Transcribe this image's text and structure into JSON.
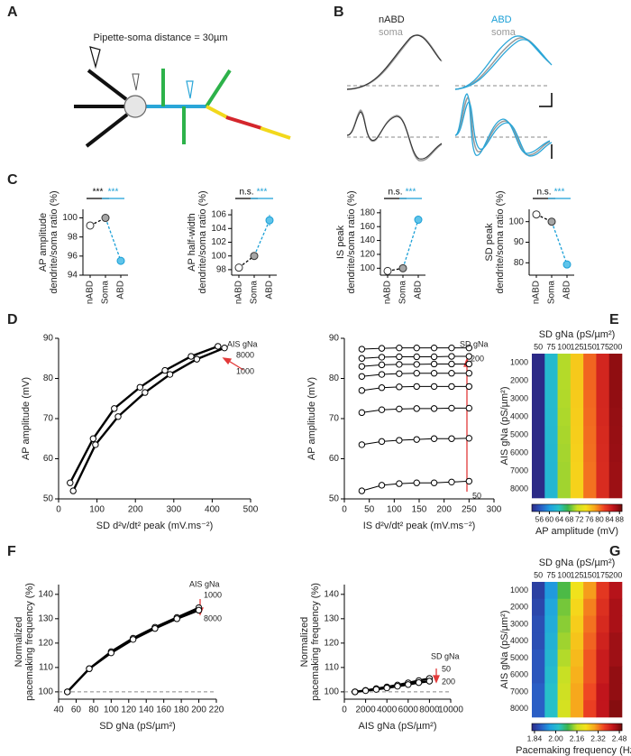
{
  "panel_labels": [
    "A",
    "B",
    "C",
    "D",
    "E",
    "F",
    "G"
  ],
  "diagram": {
    "caption": "Pipette-soma distance = 30µm"
  },
  "traces": {
    "labels": [
      "nABD",
      "soma",
      "ABD",
      "soma"
    ]
  },
  "chart_data": [
    {
      "type": "dot-line",
      "ylabel": [
        "AP amplitude",
        "dendrite/soma ratio (%)"
      ],
      "categories": [
        "nABD",
        "Soma",
        "ABD"
      ],
      "values": [
        99.2,
        100,
        95.5
      ],
      "errors": [
        0.1,
        0.1,
        0.15
      ],
      "point_colors": [
        "#ffffff",
        "#a6a6a6",
        "#5fc4ea"
      ],
      "segment_colors": [
        "#000000",
        "#1a9fd6"
      ],
      "significance": [
        {
          "label": "***",
          "color": "#000000"
        },
        {
          "label": "***",
          "color": "#1a9fd6"
        }
      ],
      "ylim": [
        94,
        100.9
      ],
      "yticks": [
        94,
        96,
        98,
        100
      ]
    },
    {
      "type": "dot-line",
      "ylabel": [
        "AP half-width",
        "dendrite/soma ratio (%)"
      ],
      "categories": [
        "nABD",
        "Soma",
        "ABD"
      ],
      "values": [
        98.3,
        100,
        105.2
      ],
      "errors": [
        0.3,
        0.1,
        0.8
      ],
      "point_colors": [
        "#ffffff",
        "#a6a6a6",
        "#5fc4ea"
      ],
      "segment_colors": [
        "#000000",
        "#1a9fd6"
      ],
      "significance": [
        {
          "label": "n.s.",
          "color": "#000000"
        },
        {
          "label": "***",
          "color": "#1a9fd6"
        }
      ],
      "ylim": [
        97.2,
        106.8
      ],
      "yticks": [
        98,
        100,
        102,
        104,
        106
      ]
    },
    {
      "type": "dot-line",
      "ylabel": [
        "IS peak",
        "dendrite/soma ratio (%)"
      ],
      "categories": [
        "nABD",
        "Soma",
        "ABD"
      ],
      "values": [
        96,
        100,
        170
      ],
      "errors": [
        1,
        1,
        2
      ],
      "point_colors": [
        "#ffffff",
        "#a6a6a6",
        "#5fc4ea"
      ],
      "segment_colors": [
        "#000000",
        "#1a9fd6"
      ],
      "significance": [
        {
          "label": "n.s.",
          "color": "#000000"
        },
        {
          "label": "***",
          "color": "#1a9fd6"
        }
      ],
      "ylim": [
        90,
        185
      ],
      "yticks": [
        100,
        120,
        140,
        160,
        180
      ]
    },
    {
      "type": "dot-line",
      "ylabel": [
        "SD peak",
        "dendrite/soma ratio (%)"
      ],
      "categories": [
        "nABD",
        "Soma",
        "ABD"
      ],
      "values": [
        103.5,
        100,
        79.2
      ],
      "errors": [
        0.5,
        0.3,
        1.8
      ],
      "point_colors": [
        "#ffffff",
        "#a6a6a6",
        "#5fc4ea"
      ],
      "segment_colors": [
        "#000000",
        "#1a9fd6"
      ],
      "significance": [
        {
          "label": "n.s.",
          "color": "#000000"
        },
        {
          "label": "***",
          "color": "#1a9fd6"
        }
      ],
      "ylim": [
        74,
        106
      ],
      "yticks": [
        80,
        90,
        100
      ]
    },
    {
      "type": "line",
      "xlabel": "SD d²v/dt² peak (mV.ms⁻²)",
      "ylabel": "AP amplitude (mV)",
      "annotations": [
        "AIS gNa",
        "8000",
        "1000"
      ],
      "series": [
        {
          "color": "#000000",
          "x": [
            30,
            90,
            145,
            212,
            277,
            345,
            415
          ],
          "values": [
            54,
            65,
            72.5,
            77.8,
            82,
            85.5,
            88
          ]
        },
        {
          "color": "#000000",
          "x": [
            38,
            96,
            155,
            225,
            290,
            360,
            432
          ],
          "values": [
            52,
            63.5,
            70.5,
            76.5,
            81,
            84.8,
            87.6
          ]
        }
      ],
      "xlim": [
        0,
        500
      ],
      "xticks": [
        0,
        100,
        200,
        300,
        400,
        500
      ],
      "ylim": [
        50,
        90
      ],
      "yticks": [
        50,
        60,
        70,
        80,
        90
      ]
    },
    {
      "type": "line",
      "xlabel": "IS d²v/dt² peak (mV.ms⁻²)",
      "ylabel": "AP amplitude (mV)",
      "annotations": [
        "SD gNa",
        "200",
        "50"
      ],
      "x": [
        35,
        75,
        110,
        145,
        180,
        215,
        250
      ],
      "series": [
        {
          "color": "#000000",
          "values": [
            52,
            53.4,
            53.8,
            54,
            54,
            54.2,
            54.4
          ]
        },
        {
          "color": "#000000",
          "values": [
            63.5,
            64.3,
            64.6,
            64.8,
            65,
            65,
            65.1
          ]
        },
        {
          "color": "#000000",
          "values": [
            71.5,
            72.2,
            72.4,
            72.5,
            72.5,
            72.6,
            72.6
          ]
        },
        {
          "color": "#000000",
          "values": [
            77,
            77.7,
            77.9,
            78,
            78,
            78,
            78
          ]
        },
        {
          "color": "#000000",
          "values": [
            80.5,
            81,
            81.2,
            81.3,
            81.3,
            81.3,
            81.3
          ]
        },
        {
          "color": "#000000",
          "values": [
            83,
            83.4,
            83.5,
            83.5,
            83.6,
            83.6,
            83.6
          ]
        },
        {
          "color": "#000000",
          "values": [
            85,
            85.3,
            85.4,
            85.4,
            85.4,
            85.5,
            85.5
          ]
        },
        {
          "color": "#000000",
          "values": [
            87.3,
            87.5,
            87.6,
            87.6,
            87.6,
            87.6,
            87.6
          ]
        }
      ],
      "xlim": [
        0,
        300
      ],
      "xticks": [
        0,
        50,
        100,
        150,
        200,
        250,
        300
      ],
      "ylim": [
        50,
        90
      ],
      "yticks": [
        50,
        60,
        70,
        80,
        90
      ]
    },
    {
      "type": "heatmap",
      "xlabel": "SD gNa (pS/µm²)",
      "ylabel": "AIS gNa (pS/µm²)",
      "colorbar_label": "AP amplitude (mV)",
      "x_categories": [
        50,
        75,
        100,
        125,
        150,
        175,
        200
      ],
      "y_categories": [
        1000,
        2000,
        3000,
        4000,
        5000,
        6000,
        7000,
        8000
      ],
      "values": [
        [
          53,
          63,
          70.5,
          76,
          80.5,
          84,
          87.5
        ],
        [
          53,
          63,
          70.5,
          76,
          80.5,
          84,
          87.5
        ],
        [
          52.9,
          62.9,
          70.4,
          75.9,
          80.4,
          83.9,
          87.4
        ],
        [
          52.8,
          62.8,
          70.3,
          75.8,
          80.3,
          83.8,
          87.3
        ],
        [
          52.7,
          62.7,
          70.2,
          75.7,
          80.2,
          83.7,
          87.2
        ],
        [
          52.7,
          62.6,
          70.1,
          75.6,
          80.1,
          83.6,
          87.1
        ],
        [
          52.6,
          62.5,
          70,
          75.5,
          80,
          83.5,
          87
        ],
        [
          52.5,
          62.5,
          70,
          75.5,
          80,
          83.5,
          87
        ]
      ],
      "zlim": [
        53,
        89
      ],
      "zticks": [
        56,
        60,
        64,
        68,
        72,
        76,
        80,
        84,
        88
      ],
      "colormap": [
        "#2c2a87",
        "#2a5cc4",
        "#1fa0e0",
        "#27c2c8",
        "#3bb54a",
        "#c8e024",
        "#f5e21b",
        "#f7a21c",
        "#ee4223",
        "#c0141c",
        "#6e0a0a"
      ]
    },
    {
      "type": "line",
      "xlabel": "SD gNa (pS/µm²)",
      "ylabel": [
        "Normalized",
        "pacemaking frequency (%)"
      ],
      "annotations": [
        "AIS gNa",
        "1000",
        "8000"
      ],
      "reference_line": 100,
      "x": [
        50,
        75,
        100,
        125,
        150,
        175,
        200
      ],
      "series": [
        {
          "color": "#000000",
          "values": [
            100,
            109.5,
            116.5,
            122,
            126.5,
            130.5,
            134.5
          ]
        },
        {
          "color": "#000000",
          "values": [
            100,
            109.5,
            116,
            121.5,
            126,
            130,
            133.5
          ]
        }
      ],
      "xlim": [
        40,
        220
      ],
      "xticks": [
        40,
        60,
        80,
        100,
        120,
        140,
        160,
        180,
        200,
        220
      ],
      "ylim": [
        97,
        144
      ],
      "yticks": [
        100,
        110,
        120,
        130,
        140
      ]
    },
    {
      "type": "line",
      "xlabel": "AIS gNa (pS/µm²)",
      "ylabel": [
        "Normalized",
        "pacemaking frequency (%)"
      ],
      "annotations": [
        "SD gNa",
        "50",
        "200"
      ],
      "reference_line": 100,
      "x": [
        1000,
        2000,
        3000,
        4000,
        5000,
        6000,
        7000,
        8000
      ],
      "series": [
        {
          "color": "#000000",
          "values": [
            100,
            100.6,
            101.3,
            102,
            102.8,
            103.7,
            104.6,
            105.5
          ]
        },
        {
          "color": "#000000",
          "values": [
            100,
            100.5,
            101,
            101.6,
            102.3,
            103,
            103.8,
            104.4
          ]
        }
      ],
      "xlim": [
        0,
        10000
      ],
      "xticks": [
        0,
        2000,
        4000,
        6000,
        8000,
        10000
      ],
      "ylim": [
        97,
        144
      ],
      "yticks": [
        100,
        110,
        120,
        130,
        140
      ]
    },
    {
      "type": "heatmap",
      "xlabel": "SD gNa (pS/µm²)",
      "ylabel": "AIS gNa (pS/µm²)",
      "colorbar_label": "Pacemaking frequency (Hz)",
      "x_categories": [
        50,
        75,
        100,
        125,
        150,
        175,
        200
      ],
      "y_categories": [
        1000,
        2000,
        3000,
        4000,
        5000,
        6000,
        7000,
        8000
      ],
      "values": [
        [
          1.85,
          1.95,
          2.1,
          2.22,
          2.3,
          2.38,
          2.44
        ],
        [
          1.86,
          1.97,
          2.12,
          2.24,
          2.32,
          2.39,
          2.45
        ],
        [
          1.87,
          1.98,
          2.13,
          2.25,
          2.33,
          2.4,
          2.45
        ],
        [
          1.87,
          1.99,
          2.14,
          2.26,
          2.34,
          2.41,
          2.46
        ],
        [
          1.88,
          2,
          2.15,
          2.27,
          2.35,
          2.42,
          2.46
        ],
        [
          1.88,
          2.01,
          2.16,
          2.28,
          2.35,
          2.42,
          2.47
        ],
        [
          1.89,
          2.02,
          2.17,
          2.29,
          2.36,
          2.43,
          2.47
        ],
        [
          1.89,
          2.02,
          2.18,
          2.29,
          2.37,
          2.43,
          2.48
        ]
      ],
      "zlim": [
        1.82,
        2.5
      ],
      "zticks": [
        1.84,
        {
          "value": 2,
          "label": "2.00"
        },
        2.16,
        2.32,
        2.48
      ],
      "colormap": [
        "#2c2a87",
        "#2a5cc4",
        "#1fa0e0",
        "#27c2c8",
        "#3bb54a",
        "#c8e024",
        "#f5e21b",
        "#f7a21c",
        "#ee4223",
        "#c0141c",
        "#6e0a0a"
      ]
    }
  ]
}
